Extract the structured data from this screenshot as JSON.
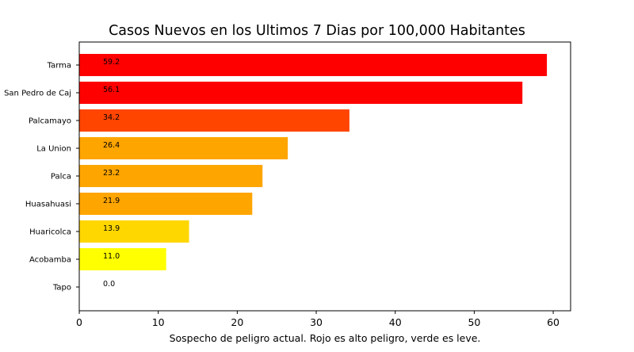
{
  "chart_data": {
    "type": "bar",
    "orientation": "horizontal",
    "title": "Casos Nuevos en los Ultimos 7 Dias por 100,000 Habitantes",
    "xlabel": "Sospecho de peligro actual. Rojo es alto peligro, verde es leve.",
    "ylabel": "",
    "categories": [
      "Tarma",
      "San Pedro de Caj",
      "Palcamayo",
      "La Union",
      "Palca",
      "Huasahuasi",
      "Huaricolca",
      "Acobamba",
      "Tapo"
    ],
    "values": [
      59.2,
      56.1,
      34.2,
      26.4,
      23.2,
      21.9,
      13.9,
      11.0,
      0.0
    ],
    "value_labels": [
      "59.2",
      "56.1",
      "34.2",
      "26.4",
      "23.2",
      "21.9",
      "13.9",
      "11.0",
      "0.0"
    ],
    "colors": [
      "#ff0000",
      "#ff0000",
      "#ff4500",
      "#ffa500",
      "#ffa500",
      "#ffa500",
      "#ffd700",
      "#ffff00",
      "#ffff00"
    ],
    "xlim": [
      0,
      62.2
    ],
    "xticks": [
      0,
      10,
      20,
      30,
      40,
      50,
      60
    ],
    "grid": false,
    "legend": "none"
  }
}
